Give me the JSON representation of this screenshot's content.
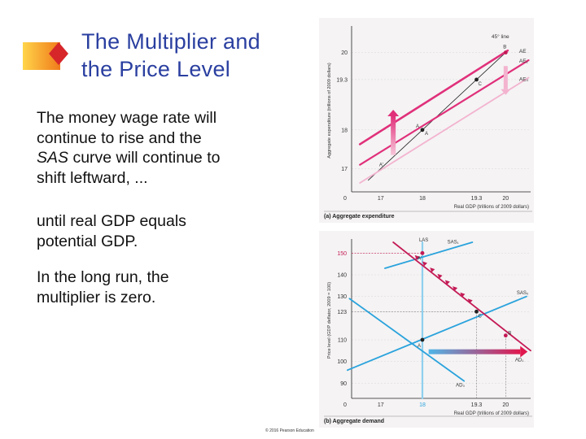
{
  "slide": {
    "title_lines": [
      "The Multiplier and",
      "the Price Level"
    ],
    "paragraph1": {
      "line1": "The money wage rate will",
      "line2": "continue to rise and the",
      "line3_italic": "SAS",
      "line3_rest": " curve will continue to",
      "line4": "shift leftward, ..."
    },
    "paragraph2_lines": [
      "until real GDP equals",
      "potential GDP."
    ],
    "paragraph3_lines": [
      "In the long run, the",
      "multiplier is zero."
    ],
    "copyright": "© 2016 Pearson Education",
    "colors": {
      "title": "#2a3fa0",
      "ae_curves": "#e0307a",
      "ae_pale": "#f3b3cf",
      "sas_blue": "#2aa3dc",
      "lrs": "#8fd0ee",
      "highlight_point": "#c41a55",
      "arrow_blue_start": "#4fb6e8",
      "arrow_red_end": "#e0184e"
    }
  },
  "chart_data": [
    {
      "type": "line",
      "caption": "(a) Aggregate expenditure",
      "ylabel": "Aggregate expenditure (trillions of 2009 dollars)",
      "xlabel": "Real GDP (trillions of 2009 dollars)",
      "x_tick_labels": [
        "0",
        "17",
        "18",
        "19.3",
        "20"
      ],
      "y_tick_labels": [
        "17",
        "18",
        "19.3",
        "20"
      ],
      "xlim": [
        16.3,
        20.6
      ],
      "ylim": [
        16.4,
        20.6
      ],
      "series": [
        {
          "name": "45° line",
          "x": [
            16.7,
            20.05
          ],
          "y": [
            16.7,
            20.05
          ]
        },
        {
          "name": "AE",
          "x": [
            16.5,
            20.05
          ],
          "y": [
            17.63,
            20.05
          ]
        },
        {
          "name": "AE1",
          "x": [
            16.5,
            20.55
          ],
          "y": [
            17.1,
            19.8
          ]
        },
        {
          "name": "AE0",
          "x": [
            16.5,
            20.55
          ],
          "y": [
            16.63,
            19.35
          ]
        }
      ],
      "points": [
        {
          "label": "B",
          "x": 20.0,
          "y": 20.0
        },
        {
          "label": "C",
          "x": 19.3,
          "y": 19.3
        },
        {
          "label": "A",
          "x": 18.0,
          "y": 18.0
        },
        {
          "label": "A'",
          "x": 17.0,
          "y": 17.0
        }
      ]
    },
    {
      "type": "line",
      "caption": "(b) Aggregate demand",
      "ylabel": "Price level (GDP deflator, 2009 = 100)",
      "xlabel": "Real GDP (trillions of 2009 dollars)",
      "x_tick_labels": [
        "0",
        "17",
        "18",
        "19.3",
        "20"
      ],
      "y_tick_labels": [
        "90",
        "100",
        "110",
        "123",
        "130",
        "140",
        "150"
      ],
      "xlim": [
        16.3,
        20.6
      ],
      "ylim": [
        83,
        155
      ],
      "series": [
        {
          "name": "LAS",
          "x": [
            18,
            18
          ],
          "y": [
            83,
            155
          ]
        },
        {
          "name": "SAS1",
          "x": [
            17.1,
            19.2
          ],
          "y": [
            143,
            157
          ]
        },
        {
          "name": "SAS0",
          "x": [
            16.2,
            20.5
          ],
          "y": [
            96,
            130
          ]
        },
        {
          "name": "AD0",
          "x": [
            16.25,
            19.0
          ],
          "y": [
            129,
            91
          ]
        },
        {
          "name": "AD1",
          "x": [
            17.3,
            20.6
          ],
          "y": [
            157,
            105
          ]
        }
      ],
      "points": [
        {
          "label": "A'",
          "x": 18.0,
          "y": 150
        },
        {
          "label": "C",
          "x": 19.3,
          "y": 123
        },
        {
          "label": "B",
          "x": 20.0,
          "y": 112
        },
        {
          "label": "A",
          "x": 18.0,
          "y": 110
        }
      ]
    }
  ]
}
